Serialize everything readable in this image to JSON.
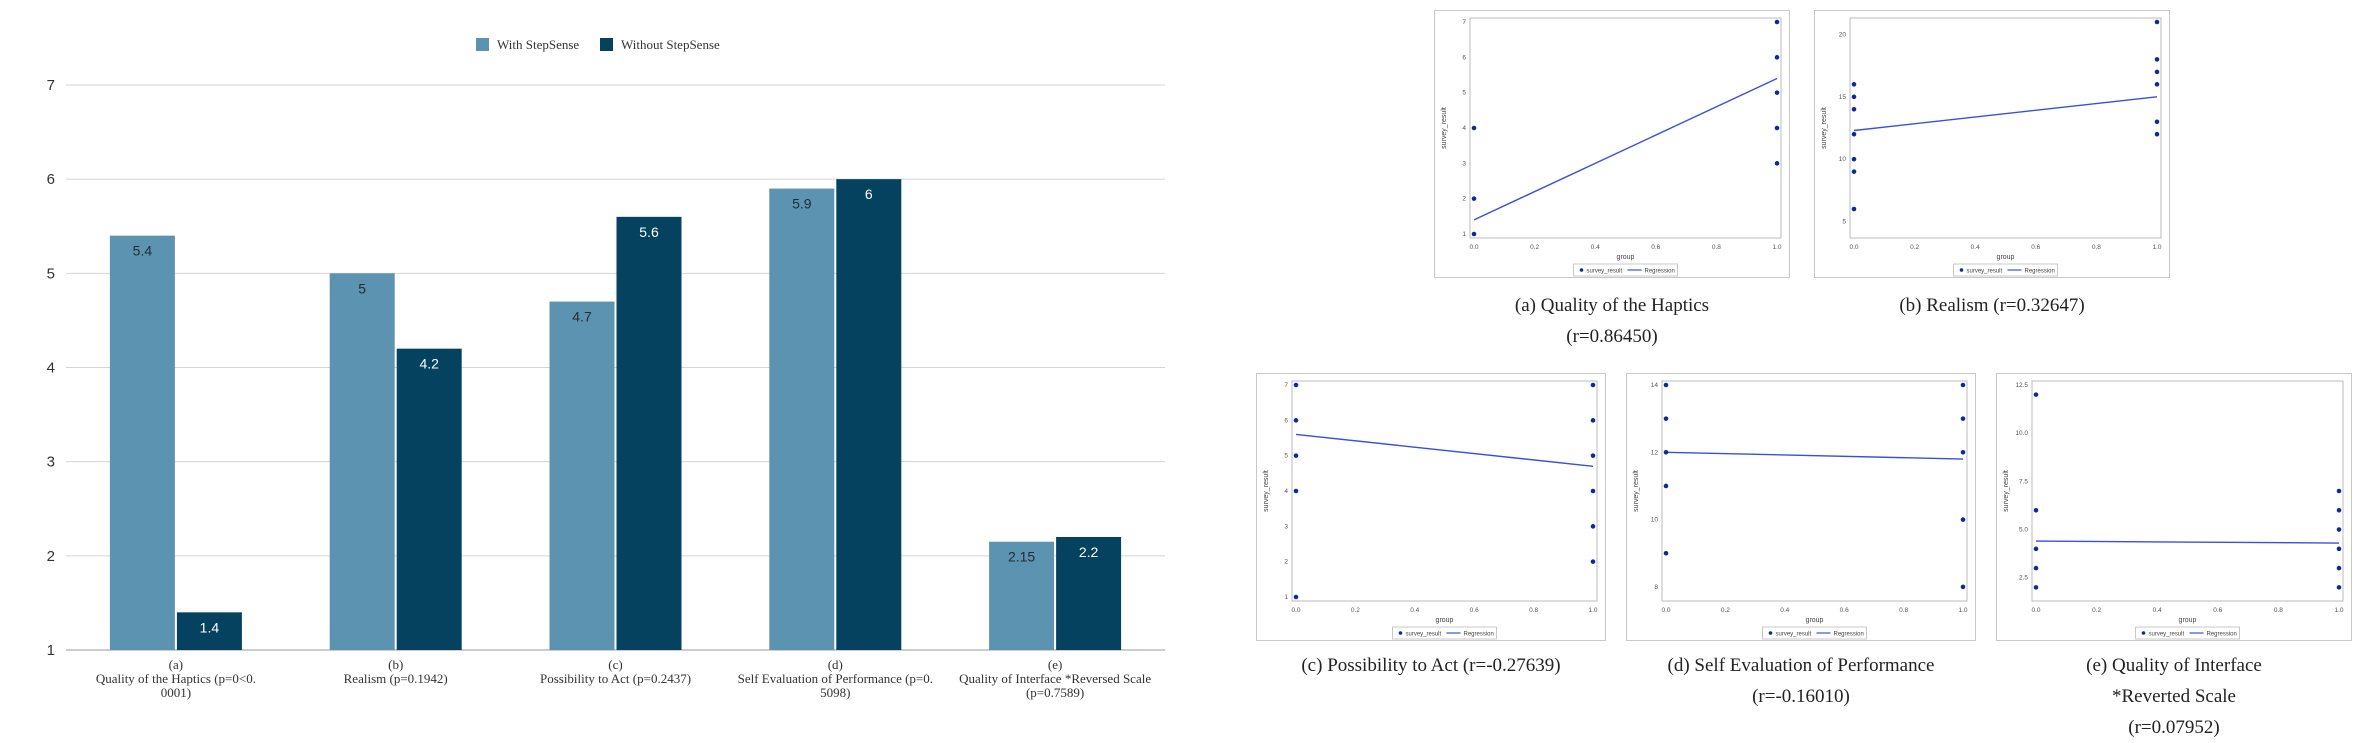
{
  "chart_data": [
    {
      "type": "bar",
      "legend": [
        {
          "name": "With StepSense",
          "color": "#5b93b1"
        },
        {
          "name": "Without StepSense",
          "color": "#04425f"
        }
      ],
      "ylim": [
        1,
        7
      ],
      "yticks": [
        "1",
        "2",
        "3",
        "4",
        "5",
        "6",
        "7"
      ],
      "categories": [
        [
          "(a)",
          "Quality of the Haptics (p=0<0.",
          "0001)"
        ],
        [
          "(b)",
          "Realism (p=0.1942)"
        ],
        [
          "(c)",
          "Possibility to Act (p=0.2437)"
        ],
        [
          "(d)",
          "Self Evaluation of Performance (p=0.",
          "5098)"
        ],
        [
          "(e)",
          "Quality of Interface *Reversed Scale",
          "(p=0.7589)"
        ]
      ],
      "series": [
        {
          "name": "With StepSense",
          "values": [
            5.4,
            5,
            4.7,
            5.9,
            2.15
          ],
          "labels": [
            "5.4",
            "5",
            "4.7",
            "5.9",
            "2.15"
          ]
        },
        {
          "name": "Without StepSense",
          "values": [
            1.4,
            4.2,
            5.6,
            6,
            2.2
          ],
          "labels": [
            "1.4",
            "4.2",
            "5.6",
            "6",
            "2.2"
          ]
        }
      ]
    },
    {
      "type": "scatter",
      "caption": [
        "(a) Quality of the Haptics",
        "(r=0.86450)"
      ],
      "xlabel": "group",
      "ylabel": "survey_result",
      "xlim": [
        0,
        1
      ],
      "ylim": [
        1,
        7
      ],
      "xticks": [
        "0.0",
        "0.2",
        "0.4",
        "0.6",
        "0.8",
        "1.0"
      ],
      "ytick_values": [
        1,
        2,
        3,
        4,
        5,
        6,
        7
      ],
      "yticks": [
        "1",
        "2",
        "3",
        "4",
        "5",
        "6",
        "7"
      ],
      "points": [
        [
          0,
          1
        ],
        [
          0,
          2
        ],
        [
          0,
          4
        ],
        [
          1,
          3
        ],
        [
          1,
          4
        ],
        [
          1,
          5
        ],
        [
          1,
          6
        ],
        [
          1,
          7
        ]
      ],
      "regression": [
        [
          0,
          1.4
        ],
        [
          1,
          5.4
        ]
      ],
      "legend": [
        "survey_result",
        "Regression"
      ]
    },
    {
      "type": "scatter",
      "caption": [
        "(b) Realism (r=0.32647)"
      ],
      "xlabel": "group",
      "ylabel": "survey_result",
      "xlim": [
        0,
        1
      ],
      "ylim": [
        4,
        21
      ],
      "xticks": [
        "0.0",
        "0.2",
        "0.4",
        "0.6",
        "0.8",
        "1.0"
      ],
      "ytick_values": [
        5,
        10,
        15,
        20
      ],
      "yticks": [
        "5",
        "10",
        "15",
        "20"
      ],
      "points": [
        [
          0,
          6
        ],
        [
          0,
          9
        ],
        [
          0,
          10
        ],
        [
          0,
          12
        ],
        [
          0,
          14
        ],
        [
          0,
          15
        ],
        [
          0,
          16
        ],
        [
          1,
          12
        ],
        [
          1,
          13
        ],
        [
          1,
          16
        ],
        [
          1,
          17
        ],
        [
          1,
          18
        ],
        [
          1,
          21
        ]
      ],
      "regression": [
        [
          0,
          12.3
        ],
        [
          1,
          15
        ]
      ],
      "legend": [
        "survey_result",
        "Regression"
      ]
    },
    {
      "type": "scatter",
      "caption": [
        "(c) Possibility to Act (r=-0.27639)"
      ],
      "xlabel": "group",
      "ylabel": "survey_result",
      "xlim": [
        0,
        1
      ],
      "ylim": [
        1,
        7
      ],
      "xticks": [
        "0.0",
        "0.2",
        "0.4",
        "0.6",
        "0.8",
        "1.0"
      ],
      "ytick_values": [
        1,
        2,
        3,
        4,
        5,
        6,
        7
      ],
      "yticks": [
        "1",
        "2",
        "3",
        "4",
        "5",
        "6",
        "7"
      ],
      "points": [
        [
          0,
          1
        ],
        [
          0,
          4
        ],
        [
          0,
          5
        ],
        [
          0,
          6
        ],
        [
          0,
          7
        ],
        [
          1,
          2
        ],
        [
          1,
          3
        ],
        [
          1,
          4
        ],
        [
          1,
          5
        ],
        [
          1,
          6
        ],
        [
          1,
          7
        ]
      ],
      "regression": [
        [
          0,
          5.6
        ],
        [
          1,
          4.7
        ]
      ],
      "legend": [
        "survey_result",
        "Regression"
      ]
    },
    {
      "type": "scatter",
      "caption": [
        "(d) Self Evaluation of Performance",
        "(r=-0.16010)"
      ],
      "xlabel": "group",
      "ylabel": "survey_result",
      "xlim": [
        0,
        1
      ],
      "ylim": [
        7.7,
        14
      ],
      "xticks": [
        "0.0",
        "0.2",
        "0.4",
        "0.6",
        "0.8",
        "1.0"
      ],
      "ytick_values": [
        8,
        10,
        12,
        14
      ],
      "yticks": [
        "8",
        "10",
        "12",
        "14"
      ],
      "points": [
        [
          0,
          9
        ],
        [
          0,
          11
        ],
        [
          0,
          12
        ],
        [
          0,
          13
        ],
        [
          0,
          14
        ],
        [
          1,
          8
        ],
        [
          1,
          10
        ],
        [
          1,
          12
        ],
        [
          1,
          13
        ],
        [
          1,
          14
        ]
      ],
      "regression": [
        [
          0,
          12
        ],
        [
          1,
          11.8
        ]
      ],
      "legend": [
        "survey_result",
        "Regression"
      ]
    },
    {
      "type": "scatter",
      "caption": [
        "(e) Quality of Interface",
        "*Reverted Scale",
        "(r=0.07952)"
      ],
      "xlabel": "group",
      "ylabel": "survey_result",
      "xlim": [
        0,
        1
      ],
      "ylim": [
        1.5,
        12.5
      ],
      "xticks": [
        "0.0",
        "0.2",
        "0.4",
        "0.6",
        "0.8",
        "1.0"
      ],
      "ytick_values": [
        2.5,
        5,
        7.5,
        10,
        12.5
      ],
      "yticks": [
        "2.5",
        "5.0",
        "7.5",
        "10.0",
        "12.5"
      ],
      "points": [
        [
          0,
          2
        ],
        [
          0,
          3
        ],
        [
          0,
          4
        ],
        [
          0,
          6
        ],
        [
          0,
          12
        ],
        [
          1,
          2
        ],
        [
          1,
          3
        ],
        [
          1,
          4
        ],
        [
          1,
          5
        ],
        [
          1,
          6
        ],
        [
          1,
          7
        ]
      ],
      "regression": [
        [
          0,
          4.4
        ],
        [
          1,
          4.3
        ]
      ],
      "legend": [
        "survey_result",
        "Regression"
      ]
    }
  ]
}
